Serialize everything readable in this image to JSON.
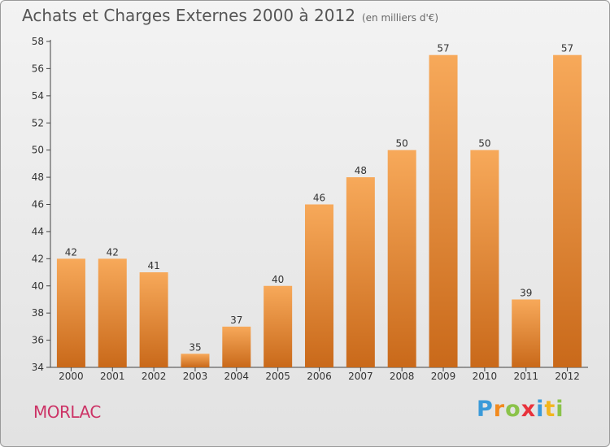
{
  "chart_data": {
    "type": "bar",
    "title": "Achats et Charges Externes 2000 à 2012",
    "subtitle": "(en milliers d'€)",
    "categories": [
      "2000",
      "2001",
      "2002",
      "2003",
      "2004",
      "2005",
      "2006",
      "2007",
      "2008",
      "2009",
      "2010",
      "2011",
      "2012"
    ],
    "values": [
      42,
      42,
      41,
      35,
      37,
      40,
      46,
      48,
      50,
      57,
      50,
      39,
      57
    ],
    "ylim": [
      34,
      58
    ],
    "yticks": [
      34,
      36,
      38,
      40,
      42,
      44,
      46,
      48,
      50,
      52,
      54,
      56,
      58
    ],
    "xlabel": "",
    "ylabel": "",
    "grid": false,
    "bar_color_light": "#f7a95a",
    "bar_color_dark": "#c9691a"
  },
  "footer": {
    "town": "MORLAC",
    "brand": [
      "P",
      "r",
      "o",
      "x",
      "i",
      "t",
      "i"
    ],
    "brand_colors": [
      "#3a9ad9",
      "#f28a1e",
      "#8bc34a",
      "#e8323c",
      "#3a9ad9",
      "#f2b61e",
      "#8bc34a"
    ]
  }
}
